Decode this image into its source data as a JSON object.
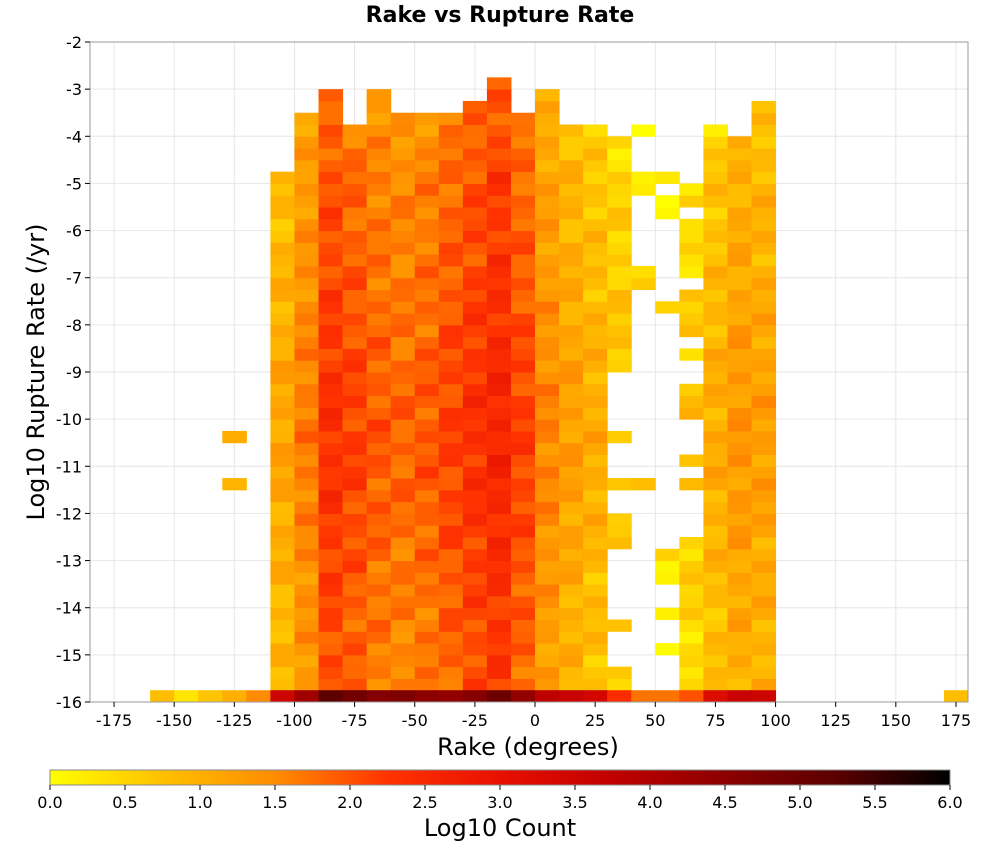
{
  "chart_data": {
    "type": "heatmap",
    "title": "Rake vs Rupture Rate",
    "xlabel": "Rake (degrees)",
    "ylabel": "Log10 Rupture Rate (/yr)",
    "xlim": [
      -185,
      180
    ],
    "ylim": [
      -16,
      -2
    ],
    "xticks": [
      -175,
      -150,
      -125,
      -100,
      -75,
      -50,
      -25,
      0,
      25,
      50,
      75,
      100,
      125,
      150,
      175
    ],
    "yticks": [
      -2,
      -3,
      -4,
      -5,
      -6,
      -7,
      -8,
      -9,
      -10,
      -11,
      -12,
      -13,
      -14,
      -15,
      -16
    ],
    "x_bin_width": 10,
    "y_bin_height": 0.25,
    "colorbar": {
      "label": "Log10 Count",
      "range": [
        0,
        6
      ],
      "ticks": [
        "0.0",
        "0.5",
        "1.0",
        "1.5",
        "2.0",
        "2.5",
        "3.0",
        "3.5",
        "4.0",
        "4.5",
        "5.0",
        "5.5",
        "6.0"
      ],
      "colors": [
        "#ffff00",
        "#ffc000",
        "#ff8c00",
        "#ff3300",
        "#e81000",
        "#c00000",
        "#8c0000",
        "#5a0000",
        "#000000"
      ]
    },
    "bottom_row": {
      "y": -16,
      "values": [
        {
          "x": -155,
          "v": 0.8
        },
        {
          "x": -145,
          "v": 0.3
        },
        {
          "x": -135,
          "v": 0.7
        },
        {
          "x": -125,
          "v": 1.0
        },
        {
          "x": -115,
          "v": 1.5
        },
        {
          "x": -105,
          "v": 3.5
        },
        {
          "x": -95,
          "v": 4.2
        },
        {
          "x": -85,
          "v": 5.2
        },
        {
          "x": -75,
          "v": 4.9
        },
        {
          "x": -65,
          "v": 4.6
        },
        {
          "x": -55,
          "v": 4.7
        },
        {
          "x": -45,
          "v": 4.5
        },
        {
          "x": -35,
          "v": 4.4
        },
        {
          "x": -25,
          "v": 4.6
        },
        {
          "x": -15,
          "v": 5.0
        },
        {
          "x": -5,
          "v": 4.4
        },
        {
          "x": 5,
          "v": 3.8
        },
        {
          "x": 15,
          "v": 3.6
        },
        {
          "x": 25,
          "v": 3.4
        },
        {
          "x": 35,
          "v": 2.4
        },
        {
          "x": 45,
          "v": 1.7
        },
        {
          "x": 55,
          "v": 1.7
        },
        {
          "x": 65,
          "v": 2.0
        },
        {
          "x": 75,
          "v": 3.2
        },
        {
          "x": 85,
          "v": 3.6
        },
        {
          "x": 95,
          "v": 3.5
        },
        {
          "x": 175,
          "v": 0.8
        }
      ]
    },
    "columns": [
      {
        "x": -125,
        "ranges": [
          [
            -10.5,
            -10.25,
            0.4
          ],
          [
            -11.5,
            -11.25,
            0.5
          ]
        ],
        "base": 0.5
      },
      {
        "x": -105,
        "ranges": [
          [
            -15.75,
            -4.75,
            0
          ]
        ],
        "base": 0.8
      },
      {
        "x": -95,
        "ranges": [
          [
            -15.75,
            -3.5,
            0
          ]
        ],
        "base": 1.3
      },
      {
        "x": -85,
        "ranges": [
          [
            -15.75,
            -3.0,
            0
          ]
        ],
        "base": 2.0
      },
      {
        "x": -75,
        "ranges": [
          [
            -15.75,
            -3.75,
            0
          ]
        ],
        "base": 1.8
      },
      {
        "x": -65,
        "ranges": [
          [
            -15.75,
            -3.0,
            0
          ]
        ],
        "base": 1.6
      },
      {
        "x": -55,
        "ranges": [
          [
            -15.75,
            -3.5,
            0
          ]
        ],
        "base": 1.5
      },
      {
        "x": -45,
        "ranges": [
          [
            -15.75,
            -3.5,
            0
          ]
        ],
        "base": 1.6
      },
      {
        "x": -35,
        "ranges": [
          [
            -15.75,
            -3.5,
            0
          ]
        ],
        "base": 1.8
      },
      {
        "x": -25,
        "ranges": [
          [
            -15.75,
            -3.25,
            0
          ]
        ],
        "base": 2.0
      },
      {
        "x": -15,
        "ranges": [
          [
            -15.75,
            -2.75,
            0
          ]
        ],
        "base": 2.2
      },
      {
        "x": -5,
        "ranges": [
          [
            -15.75,
            -3.5,
            0
          ]
        ],
        "base": 1.8
      },
      {
        "x": 5,
        "ranges": [
          [
            -15.75,
            -3.0,
            0
          ]
        ],
        "base": 1.2
      },
      {
        "x": 15,
        "ranges": [
          [
            -15.75,
            -3.75,
            0
          ]
        ],
        "base": 0.9
      },
      {
        "x": 25,
        "ranges": [
          [
            -15.75,
            -3.75,
            0
          ]
        ],
        "base": 0.7
      },
      {
        "x": 35,
        "ranges": [
          [
            -15.75,
            -15.25,
            0
          ],
          [
            -14.5,
            -14.25,
            0
          ],
          [
            -12.75,
            -12.0,
            0
          ],
          [
            -11.5,
            -11.25,
            0
          ],
          [
            -10.5,
            -10.25,
            0
          ],
          [
            -9.0,
            -4.0,
            0
          ]
        ],
        "base": 0.5
      },
      {
        "x": 45,
        "ranges": [
          [
            -11.5,
            -11.25,
            0
          ],
          [
            -7.25,
            -6.75,
            0
          ],
          [
            -5.25,
            -4.75,
            0
          ],
          [
            -4.0,
            -3.75,
            0
          ]
        ],
        "base": 0.2
      },
      {
        "x": 55,
        "ranges": [
          [
            -15.0,
            -14.75,
            0
          ],
          [
            -14.25,
            -14.0,
            0
          ],
          [
            -13.5,
            -12.75,
            0
          ],
          [
            -7.75,
            -7.5,
            0
          ],
          [
            -5.75,
            -5.25,
            0
          ],
          [
            -5.0,
            -4.75,
            0
          ]
        ],
        "base": 0.2
      },
      {
        "x": 65,
        "ranges": [
          [
            -15.75,
            -12.5,
            0
          ],
          [
            -11.5,
            -11.25,
            0
          ],
          [
            -11.0,
            -10.75,
            0
          ],
          [
            -10.0,
            -9.25,
            0
          ],
          [
            -8.75,
            -8.5,
            0
          ],
          [
            -8.25,
            -7.25,
            0
          ],
          [
            -7.0,
            -5.75,
            0
          ],
          [
            -5.5,
            -5.0,
            0
          ]
        ],
        "base": 0.4
      },
      {
        "x": 75,
        "ranges": [
          [
            -15.75,
            -3.75,
            0
          ]
        ],
        "base": 0.7
      },
      {
        "x": 85,
        "ranges": [
          [
            -15.75,
            -4.0,
            0
          ]
        ],
        "base": 1.0
      },
      {
        "x": 95,
        "ranges": [
          [
            -15.75,
            -3.25,
            0
          ]
        ],
        "base": 0.9
      }
    ]
  }
}
